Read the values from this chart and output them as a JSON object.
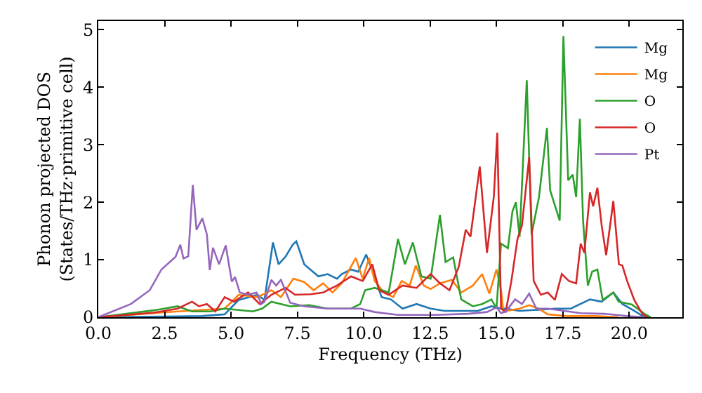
{
  "chart_data": {
    "type": "line",
    "xlabel": "Frequency (THz)",
    "ylabel": "Phonon projected DOS\n(States/THz·primitive cell)",
    "xlim": [
      0,
      22.0
    ],
    "ylim": [
      0,
      5.15
    ],
    "xticks": [
      {
        "value": 0,
        "label": "0.0"
      },
      {
        "value": 2.5,
        "label": "2.5"
      },
      {
        "value": 5,
        "label": "5.0"
      },
      {
        "value": 7.5,
        "label": "7.5"
      },
      {
        "value": 10,
        "label": "10.0"
      },
      {
        "value": 12.5,
        "label": "12.5"
      },
      {
        "value": 15,
        "label": "15.0"
      },
      {
        "value": 17.5,
        "label": "17.5"
      },
      {
        "value": 20,
        "label": "20.0"
      }
    ],
    "yticks": [
      0,
      1,
      2,
      3,
      4,
      5
    ],
    "legend": "top right",
    "marker": "none",
    "line_style": "solid",
    "series": [
      {
        "name": "Mg",
        "color": "#1f77b4",
        "x": [
          0,
          3.9,
          4.76,
          5.29,
          6.0,
          6.26,
          6.58,
          6.79,
          7.05,
          7.32,
          7.46,
          7.76,
          8.29,
          8.64,
          8.99,
          9.17,
          9.52,
          9.79,
          10.09,
          10.41,
          10.67,
          11.02,
          11.46,
          11.99,
          12.52,
          13.05,
          13.58,
          14.29,
          14.81,
          15.17,
          15.35,
          15.87,
          16.58,
          17.2,
          17.8,
          18.52,
          18.96,
          19.4,
          19.74,
          20.19,
          20.5,
          20.8
        ],
        "values": [
          0,
          0.02,
          0.05,
          0.3,
          0.39,
          0.3,
          1.3,
          0.92,
          1.05,
          1.26,
          1.32,
          0.92,
          0.71,
          0.75,
          0.67,
          0.75,
          0.83,
          0.79,
          1.09,
          0.71,
          0.35,
          0.31,
          0.15,
          0.23,
          0.15,
          0.11,
          0.11,
          0.11,
          0.19,
          0.15,
          0.15,
          0.11,
          0.13,
          0.15,
          0.15,
          0.31,
          0.27,
          0.43,
          0.23,
          0.11,
          0.02,
          0
        ]
      },
      {
        "name": "Mg",
        "color": "#ff7f0e",
        "x": [
          0,
          2.99,
          4.76,
          5.29,
          6.0,
          6.52,
          6.88,
          7.35,
          7.76,
          8.11,
          8.47,
          8.82,
          9.17,
          9.7,
          9.96,
          10.2,
          10.41,
          10.76,
          11.11,
          11.43,
          11.73,
          11.96,
          12.26,
          12.52,
          12.87,
          13.32,
          13.67,
          14.11,
          14.46,
          14.73,
          15.0,
          15.17,
          15.26,
          15.87,
          16.23,
          16.58,
          16.93,
          17.63,
          18.7,
          19.6
        ],
        "values": [
          0,
          0.1,
          0.15,
          0.39,
          0.35,
          0.47,
          0.35,
          0.67,
          0.61,
          0.47,
          0.59,
          0.43,
          0.59,
          1.03,
          0.67,
          1.03,
          0.63,
          0.43,
          0.35,
          0.63,
          0.55,
          0.9,
          0.55,
          0.49,
          0.59,
          0.65,
          0.43,
          0.55,
          0.75,
          0.41,
          0.83,
          0.47,
          0.1,
          0.15,
          0.21,
          0.15,
          0.05,
          0.02,
          0.02,
          0
        ]
      },
      {
        "name": "O",
        "color": "#2ca02c",
        "x": [
          0,
          2.1,
          2.99,
          3.53,
          4.23,
          4.76,
          5.82,
          6.17,
          6.52,
          7.23,
          7.94,
          8.64,
          9.52,
          9.87,
          10.05,
          10.41,
          10.94,
          11.29,
          11.55,
          11.85,
          12.17,
          12.52,
          12.87,
          13.08,
          13.37,
          13.67,
          14.11,
          14.46,
          14.81,
          15.0,
          15.17,
          15.43,
          15.6,
          15.73,
          15.87,
          16.14,
          16.32,
          16.6,
          16.9,
          17.02,
          17.38,
          17.52,
          17.7,
          17.87,
          18.0,
          18.14,
          18.26,
          18.44,
          18.6,
          18.8,
          19.0,
          19.4,
          19.6,
          20.1,
          20.6,
          20.8
        ],
        "values": [
          0,
          0.12,
          0.19,
          0.1,
          0.1,
          0.15,
          0.1,
          0.15,
          0.27,
          0.19,
          0.21,
          0.15,
          0.15,
          0.23,
          0.47,
          0.51,
          0.43,
          1.36,
          0.92,
          1.3,
          0.71,
          0.67,
          1.78,
          0.96,
          1.04,
          0.31,
          0.19,
          0.23,
          0.31,
          0.15,
          1.28,
          1.2,
          1.84,
          2.0,
          1.4,
          4.12,
          1.44,
          2.09,
          3.29,
          2.21,
          1.68,
          4.89,
          2.38,
          2.48,
          2.09,
          3.45,
          1.68,
          0.55,
          0.79,
          0.83,
          0.3,
          0.43,
          0.27,
          0.22,
          0.05,
          0
        ]
      },
      {
        "name": "O",
        "color": "#d62728",
        "x": [
          0,
          2.1,
          2.99,
          3.53,
          3.79,
          4.09,
          4.41,
          4.76,
          5.11,
          5.64,
          6.08,
          6.52,
          7.05,
          7.41,
          8.0,
          8.47,
          8.99,
          9.52,
          9.96,
          10.32,
          10.58,
          10.94,
          11.46,
          11.99,
          12.52,
          12.87,
          13.23,
          13.58,
          13.84,
          14.02,
          14.37,
          14.64,
          14.9,
          15.03,
          15.17,
          15.35,
          15.56,
          15.79,
          15.96,
          16.23,
          16.4,
          16.67,
          16.93,
          17.2,
          17.46,
          17.73,
          18.0,
          18.17,
          18.31,
          18.52,
          18.64,
          18.8,
          18.96,
          19.13,
          19.4,
          19.61,
          19.74,
          19.92,
          20.19,
          20.5,
          20.7
        ],
        "values": [
          0,
          0.08,
          0.15,
          0.27,
          0.19,
          0.23,
          0.1,
          0.35,
          0.27,
          0.43,
          0.23,
          0.39,
          0.51,
          0.39,
          0.4,
          0.43,
          0.55,
          0.71,
          0.63,
          0.92,
          0.47,
          0.39,
          0.55,
          0.51,
          0.75,
          0.59,
          0.47,
          0.88,
          1.52,
          1.4,
          2.62,
          1.12,
          2.1,
          3.21,
          0.15,
          0.1,
          0.63,
          1.36,
          1.6,
          2.78,
          0.63,
          0.39,
          0.43,
          0.3,
          0.75,
          0.63,
          0.59,
          1.28,
          1.12,
          2.17,
          1.93,
          2.25,
          1.6,
          1.08,
          2.02,
          0.92,
          0.9,
          0.63,
          0.3,
          0.05,
          0
        ]
      },
      {
        "name": "Pt",
        "color": "#9467bd",
        "x": [
          0,
          1.23,
          1.94,
          2.38,
          2.91,
          3.09,
          3.21,
          3.39,
          3.56,
          3.7,
          3.92,
          4.09,
          4.2,
          4.32,
          4.55,
          4.8,
          5.03,
          5.15,
          5.33,
          5.64,
          5.96,
          6.14,
          6.26,
          6.52,
          6.7,
          6.88,
          7.23,
          7.76,
          8.64,
          9.87,
          10.41,
          11.29,
          12.7,
          13.93,
          14.64,
          15.0,
          15.17,
          15.35,
          15.7,
          15.96,
          16.23,
          16.5,
          16.93,
          17.55,
          18.17,
          19.05,
          19.92,
          20.6
        ],
        "values": [
          0,
          0.23,
          0.47,
          0.83,
          1.05,
          1.26,
          1.02,
          1.06,
          2.3,
          1.52,
          1.72,
          1.44,
          0.82,
          1.21,
          0.92,
          1.25,
          0.62,
          0.7,
          0.43,
          0.39,
          0.43,
          0.23,
          0.27,
          0.65,
          0.55,
          0.65,
          0.25,
          0.19,
          0.15,
          0.15,
          0.09,
          0.04,
          0.04,
          0.06,
          0.09,
          0.17,
          0.07,
          0.1,
          0.31,
          0.23,
          0.41,
          0.15,
          0.15,
          0.11,
          0.07,
          0.06,
          0.02,
          0
        ]
      }
    ]
  }
}
